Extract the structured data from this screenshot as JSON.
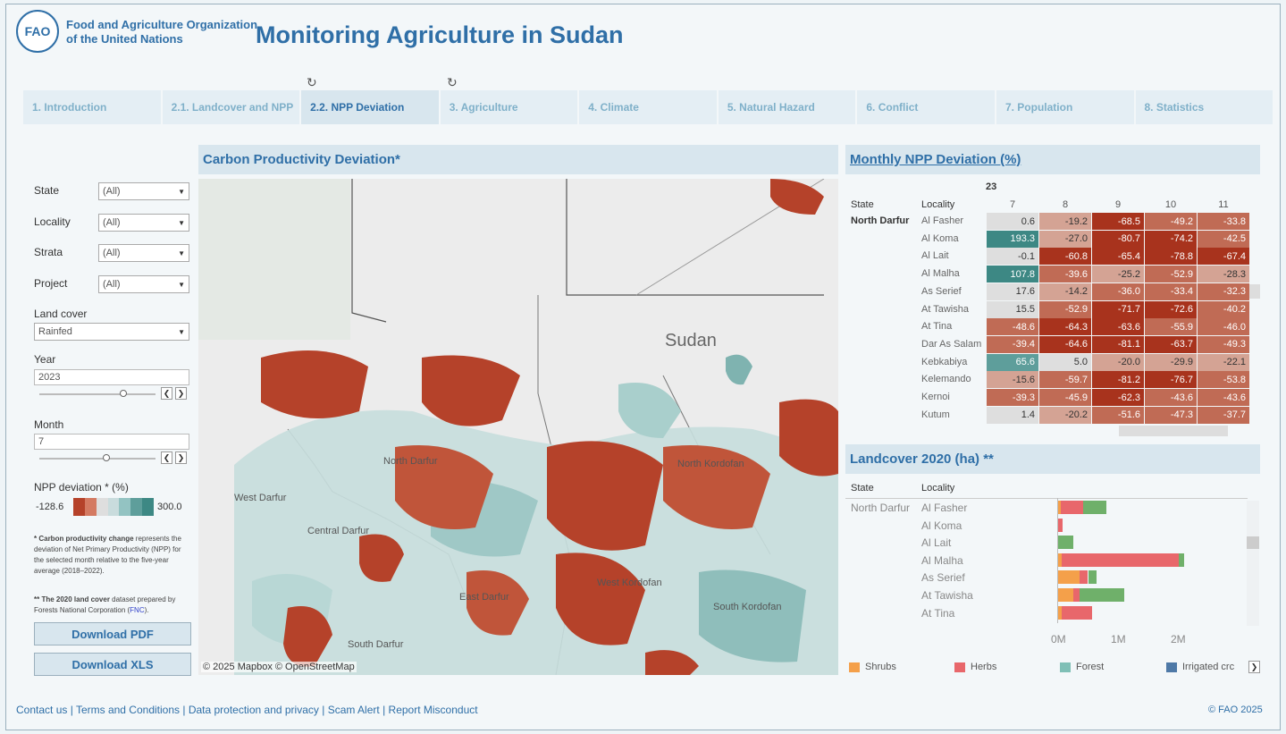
{
  "header": {
    "logo_text": "FAO",
    "org_line1": "Food and Agriculture Organization",
    "org_line2": "of the United Nations",
    "title": "Monitoring Agriculture in Sudan"
  },
  "tabs": [
    {
      "label": "1. Introduction"
    },
    {
      "label": "2.1. Landcover and NPP"
    },
    {
      "label": "2.2. NPP Deviation"
    },
    {
      "label": "3. Agriculture"
    },
    {
      "label": "4. Climate"
    },
    {
      "label": "5. Natural Hazard"
    },
    {
      "label": "6. Conflict"
    },
    {
      "label": "7. Population"
    },
    {
      "label": "8. Statistics"
    }
  ],
  "filters": {
    "state": {
      "label": "State",
      "value": "(All)"
    },
    "locality": {
      "label": "Locality",
      "value": "(All)"
    },
    "strata": {
      "label": "Strata",
      "value": "(All)"
    },
    "project": {
      "label": "Project",
      "value": "(All)"
    },
    "landcover": {
      "label": "Land cover",
      "value": "Rainfed"
    },
    "year": {
      "label": "Year",
      "value": "2023",
      "level": 0.72
    },
    "month": {
      "label": "Month",
      "value": "7",
      "level": 0.58
    },
    "npp": {
      "label": "NPP deviation * (%)",
      "min": "-128.6",
      "max": "300.0"
    }
  },
  "notes": {
    "n1_bold": "* Carbon productivity change",
    "n1_text": " represents the deviation of Net Primary Productivity (NPP) for the selected month relative to the five-year average (2018–2022).",
    "n2_bold": "** The 2020 land cover",
    "n2_text": " dataset prepared by Forests National Corporation (",
    "n2_link": "FNC",
    "n2_end": ")."
  },
  "buttons": {
    "pdf": "Download PDF",
    "xls": "Download XLS"
  },
  "map": {
    "title": "Carbon Productivity Deviation*",
    "country": "Sudan",
    "labels": [
      "North Darfur",
      "West Darfur",
      "Central Darfur",
      "East Darfur",
      "South Darfur",
      "North Kordofan",
      "West Kordofan",
      "South Kordofan"
    ],
    "attribution": "© 2025 Mapbox  © OpenStreetMap"
  },
  "heatmap": {
    "title": "Monthly NPP Deviation (%)",
    "year": "23",
    "col_state": "State",
    "col_locality": "Locality",
    "months": [
      "7",
      "8",
      "9",
      "10",
      "11"
    ],
    "state": "North Darfur",
    "rows": [
      {
        "locality": "Al Fasher",
        "values": [
          "0.6",
          "-19.2",
          "-68.5",
          "-49.2",
          "-33.8"
        ]
      },
      {
        "locality": "Al Koma",
        "values": [
          "193.3",
          "-27.0",
          "-80.7",
          "-74.2",
          "-42.5"
        ]
      },
      {
        "locality": "Al Lait",
        "values": [
          "-0.1",
          "-60.8",
          "-65.4",
          "-78.8",
          "-67.4"
        ]
      },
      {
        "locality": "Al Malha",
        "values": [
          "107.8",
          "-39.6",
          "-25.2",
          "-52.9",
          "-28.3"
        ]
      },
      {
        "locality": "As Serief",
        "values": [
          "17.6",
          "-14.2",
          "-36.0",
          "-33.4",
          "-32.3"
        ]
      },
      {
        "locality": "At Tawisha",
        "values": [
          "15.5",
          "-52.9",
          "-71.7",
          "-72.6",
          "-40.2"
        ]
      },
      {
        "locality": "At Tina",
        "values": [
          "-48.6",
          "-64.3",
          "-63.6",
          "-55.9",
          "-46.0"
        ]
      },
      {
        "locality": "Dar As Salam",
        "values": [
          "-39.4",
          "-64.6",
          "-81.1",
          "-63.7",
          "-49.3"
        ]
      },
      {
        "locality": "Kebkabiya",
        "values": [
          "65.6",
          "5.0",
          "-20.0",
          "-29.9",
          "-22.1"
        ]
      },
      {
        "locality": "Kelemando",
        "values": [
          "-15.6",
          "-59.7",
          "-81.2",
          "-76.7",
          "-53.8"
        ]
      },
      {
        "locality": "Kernoi",
        "values": [
          "-39.3",
          "-45.9",
          "-62.3",
          "-43.6",
          "-43.6"
        ]
      },
      {
        "locality": "Kutum",
        "values": [
          "1.4",
          "-20.2",
          "-51.6",
          "-47.3",
          "-37.7"
        ]
      }
    ]
  },
  "landcover": {
    "title": "Landcover 2020 (ha) **",
    "col_state": "State",
    "col_locality": "Locality",
    "state": "North Darfur",
    "rows": [
      {
        "locality": "Al Fasher",
        "shrubs": 0.04,
        "herbs": 0.38,
        "forest": 0.38
      },
      {
        "locality": "Al Koma",
        "shrubs": 0.0,
        "herbs": 0.08,
        "forest": 0.0
      },
      {
        "locality": "Al Lait",
        "shrubs": 0.0,
        "herbs": 0.0,
        "forest": 0.26
      },
      {
        "locality": "Al Malha",
        "shrubs": 0.06,
        "herbs": 1.96,
        "forest": 0.08
      },
      {
        "locality": "As Serief",
        "shrubs": 0.36,
        "herbs": 0.14,
        "forest": 0.14
      },
      {
        "locality": "At Tawisha",
        "shrubs": 0.26,
        "herbs": 0.1,
        "forest": 0.74
      },
      {
        "locality": "At Tina",
        "shrubs": 0.06,
        "herbs": 0.5,
        "forest": 0.0
      }
    ],
    "axis": [
      "0M",
      "1M",
      "2M"
    ],
    "legend": [
      {
        "label": "Shrubs",
        "color": "#f4a04a"
      },
      {
        "label": "Herbs",
        "color": "#e8676b"
      },
      {
        "label": "Forest",
        "color": "#7fbfb6"
      },
      {
        "label": "Irrigated crc",
        "color": "#4e79a7"
      }
    ]
  },
  "footer": {
    "links": [
      "Contact us",
      "Terms and Conditions",
      "Data protection and privacy",
      "Scam Alert",
      "Report Misconduct"
    ],
    "copyright": "© FAO 2025"
  }
}
